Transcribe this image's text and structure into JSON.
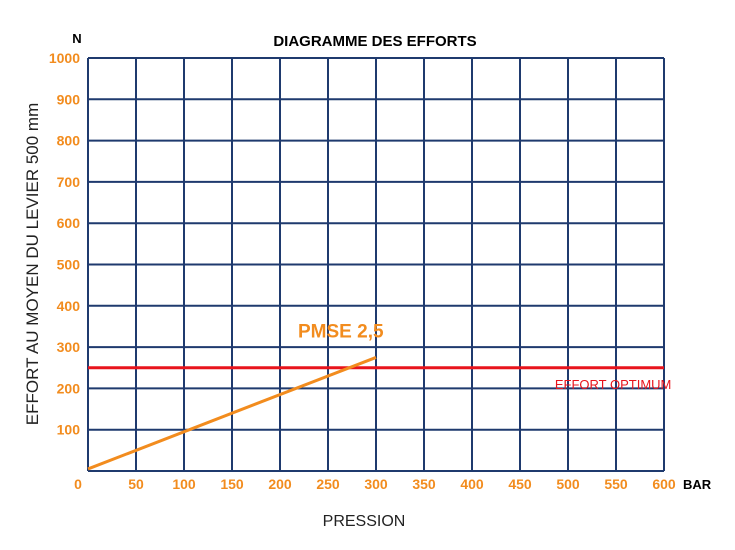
{
  "chart_data": {
    "type": "line",
    "title": "DIAGRAMME DES EFFORTS",
    "xlabel": "PRESSION",
    "ylabel": "EFFORT AU MOYEN DU LEVIER 500 mm",
    "x_unit": "BAR",
    "y_unit": "N",
    "xlim": [
      0,
      600
    ],
    "ylim": [
      0,
      1000
    ],
    "x_ticks": [
      0,
      50,
      100,
      150,
      200,
      250,
      300,
      350,
      400,
      450,
      500,
      550,
      600
    ],
    "y_ticks": [
      100,
      200,
      300,
      400,
      500,
      600,
      700,
      800,
      900,
      1000
    ],
    "grid": true,
    "series": [
      {
        "name": "PMSE 2,5",
        "x": [
          0,
          300
        ],
        "y": [
          5,
          275
        ]
      }
    ],
    "reference_lines": [
      {
        "label": "EFFORT OPTIMUM",
        "y": 250
      }
    ],
    "colors": {
      "grid": "#1f3a6e",
      "tick_labels": "#f28c1e",
      "series": "#f28c1e",
      "reference": "#e8141c"
    }
  }
}
